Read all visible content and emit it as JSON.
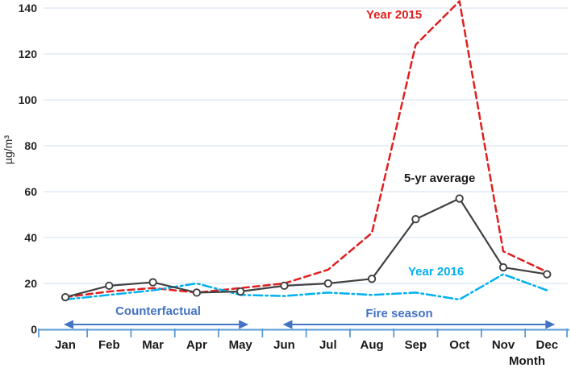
{
  "chart_data": {
    "type": "line",
    "title": "",
    "xlabel": "Month",
    "ylabel": "µg/m³",
    "ylim": [
      0,
      140
    ],
    "ytick_interval": 20,
    "yticks": [
      0,
      20,
      40,
      60,
      80,
      100,
      120,
      140
    ],
    "grid": "horizontal",
    "legend_position": "inline-labels",
    "categories": [
      "Jan",
      "Feb",
      "Mar",
      "Apr",
      "May",
      "Jun",
      "Jul",
      "Aug",
      "Sep",
      "Oct",
      "Nov",
      "Dec"
    ],
    "series": [
      {
        "name": "Year 2015",
        "color": "#e01f1f",
        "line_style": "dashed",
        "markers": false,
        "values": [
          14,
          16.5,
          18,
          16,
          18,
          20,
          26,
          42,
          124,
          143,
          34,
          25
        ]
      },
      {
        "name": "5-yr average",
        "color": "#404040",
        "line_style": "solid",
        "markers": true,
        "values": [
          14,
          19,
          20.5,
          16,
          16.5,
          19,
          20,
          22,
          48,
          57,
          27,
          24
        ]
      },
      {
        "name": "Year 2016",
        "color": "#00b0f0",
        "line_style": "dashdot",
        "markers": false,
        "values": [
          13,
          15,
          17,
          20,
          15,
          14.5,
          16,
          15,
          16,
          13,
          24,
          17
        ]
      }
    ],
    "annotations": [
      {
        "text": "Counterfactual",
        "type": "span-arrow",
        "from": "Jan",
        "to": "May"
      },
      {
        "text": "Fire season",
        "type": "span-arrow",
        "from": "Jun",
        "to": "Dec"
      }
    ],
    "colors": {
      "annotation_blue": "#4472c4",
      "axis_line_blue": "#5b9bd5",
      "gridline_blue": "#dbe5f1",
      "tick_label_color": "#262626"
    }
  }
}
